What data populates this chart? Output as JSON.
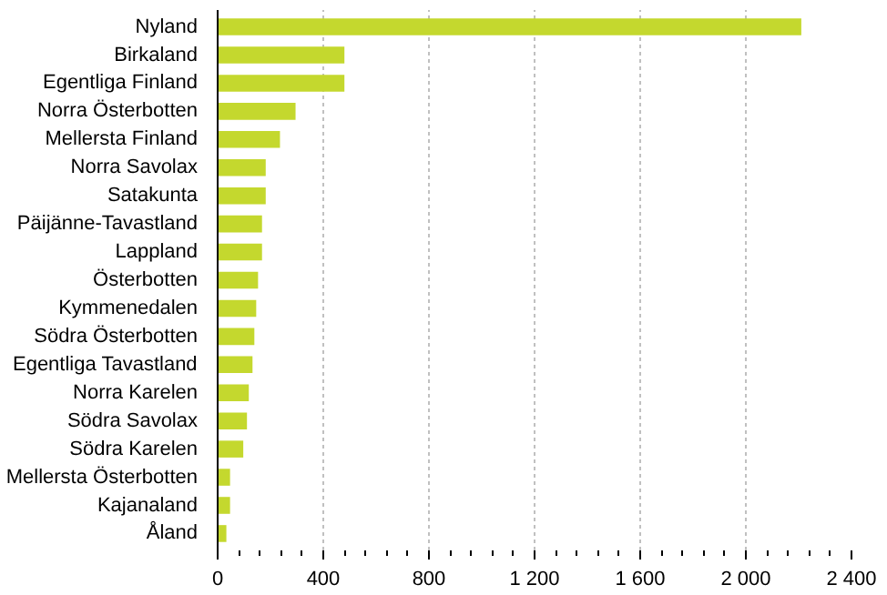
{
  "chart_data": {
    "type": "bar",
    "orientation": "horizontal",
    "categories": [
      "Nyland",
      "Birkaland",
      "Egentliga Finland",
      "Norra Österbotten",
      "Mellersta Finland",
      "Norra Savolax",
      "Satakunta",
      "Päijänne-Tavastland",
      "Lappland",
      "Österbotten",
      "Kymmenedalen",
      "Södra Österbotten",
      "Egentliga Tavastland",
      "Norra Karelen",
      "Södra Savolax",
      "Södra Karelen",
      "Mellersta Österbotten",
      "Kajanaland",
      "Åland"
    ],
    "values": [
      2210,
      480,
      480,
      295,
      236,
      182,
      182,
      168,
      168,
      153,
      146,
      139,
      132,
      118,
      111,
      97,
      47,
      47,
      33
    ],
    "color": "#c4d82e",
    "xlim": [
      0,
      2400
    ],
    "xticks": [
      0,
      400,
      800,
      {
        "value": 1200,
        "label": "1 200"
      },
      {
        "value": 1600,
        "label": "1 600"
      },
      {
        "value": 2000,
        "label": "2 000"
      },
      {
        "value": 2400,
        "label": "2 400"
      }
    ],
    "grid": "x"
  }
}
